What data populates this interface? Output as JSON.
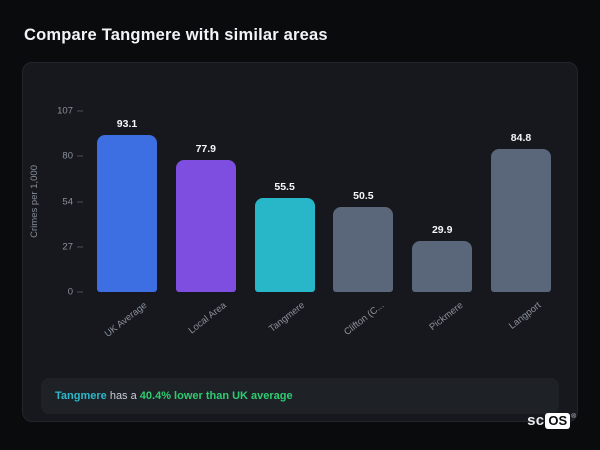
{
  "title": "Compare Tangmere with similar areas",
  "chart_data": {
    "type": "bar",
    "categories": [
      "UK Average",
      "Local Area",
      "Tangmere",
      "Clifton (C...",
      "Pickmere",
      "Langport"
    ],
    "values": [
      93.1,
      77.9,
      55.5,
      50.5,
      29.9,
      84.8
    ],
    "bar_colors": [
      "#3d6fe3",
      "#7d4ee0",
      "#27b7c8",
      "#5a6679",
      "#5a6679",
      "#5a6679"
    ],
    "title": "",
    "xlabel": "",
    "ylabel": "Crimes per 1,000",
    "yticks": [
      107,
      80,
      54,
      27,
      0
    ],
    "ylim": [
      0,
      107
    ],
    "grid": "off",
    "legend": "none"
  },
  "summary": {
    "area": "Tangmere",
    "mid": " has a ",
    "stat": "40.4% lower than UK average",
    "area_color": "#2bb9c9",
    "stat_color": "#2ecc71"
  },
  "logo": {
    "prefix": "sc",
    "boxed": "OS",
    "reg": "®"
  }
}
